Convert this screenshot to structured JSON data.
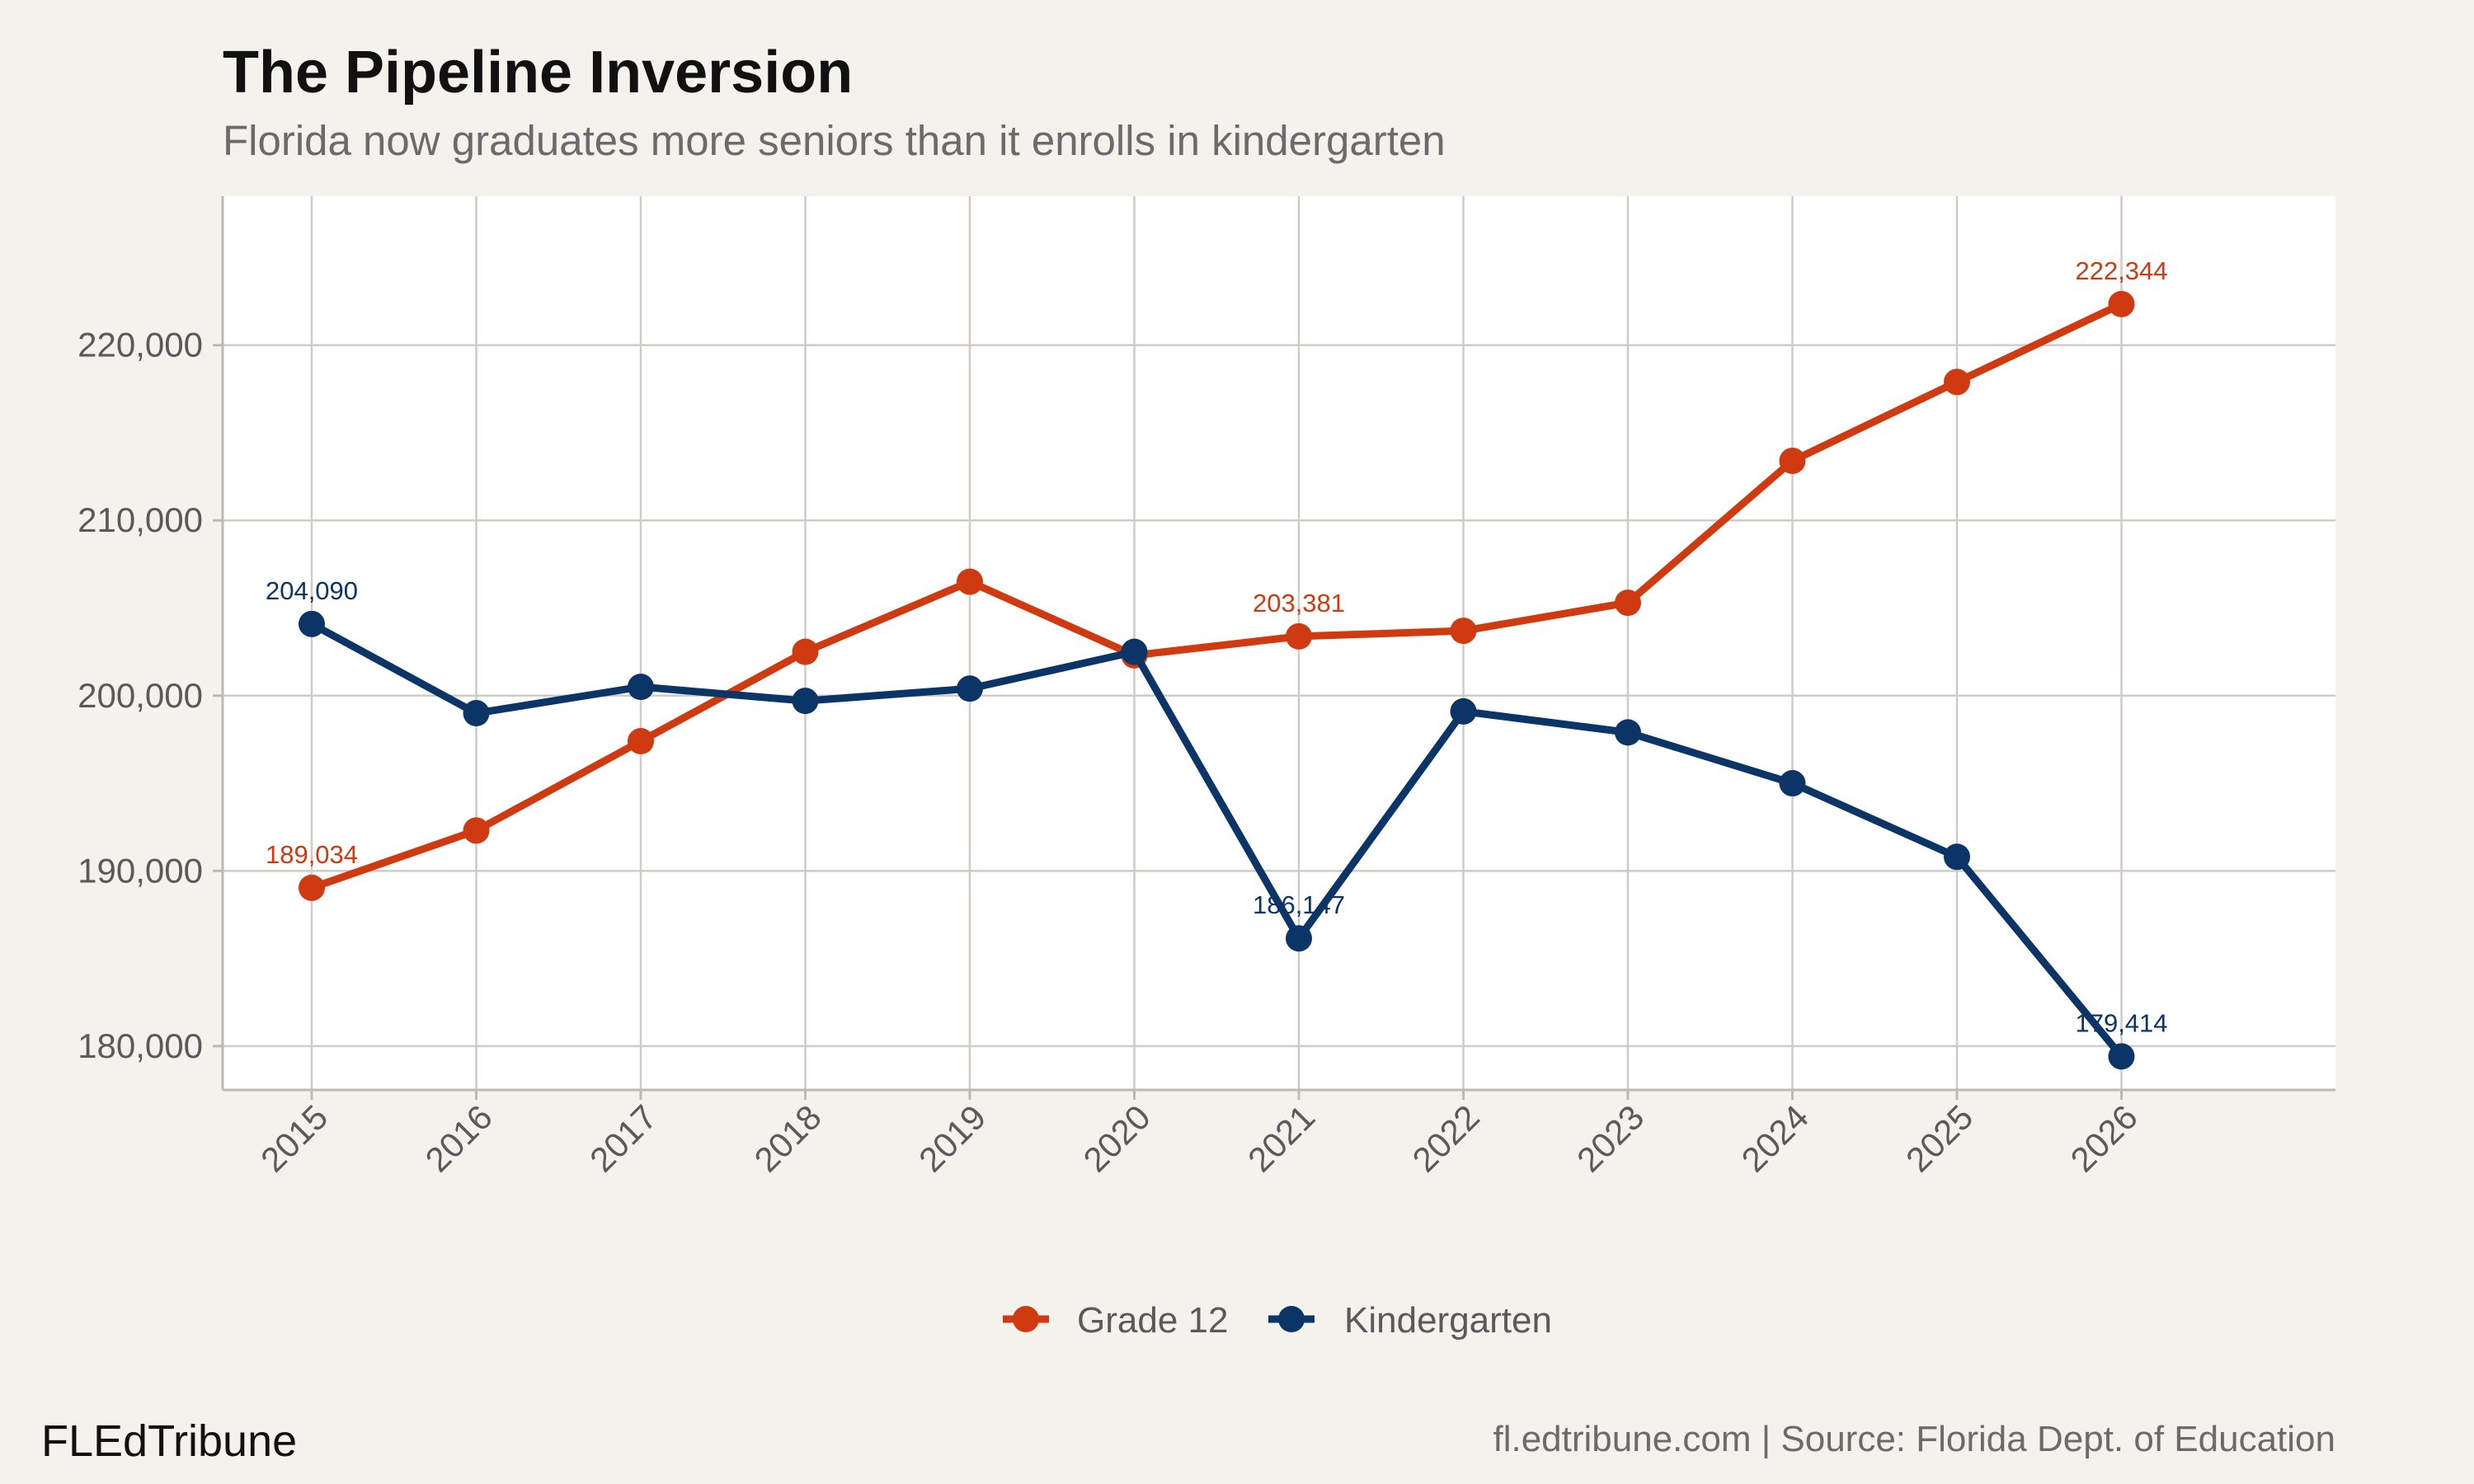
{
  "chart_data": {
    "type": "line",
    "title": "The Pipeline Inversion",
    "subtitle": "Florida now graduates more seniors than it enrolls in kindergarten",
    "xlabel": "",
    "ylabel": "",
    "x": [
      "2015",
      "2016",
      "2017",
      "2018",
      "2019",
      "2020",
      "2021",
      "2022",
      "2023",
      "2024",
      "2025",
      "2026"
    ],
    "ylim": [
      177500,
      228500
    ],
    "yticks": [
      180000,
      190000,
      200000,
      210000,
      220000
    ],
    "ytick_labels": [
      "180,000",
      "190,000",
      "200,000",
      "210,000",
      "220,000"
    ],
    "grid": true,
    "legend_position": "bottom",
    "series": [
      {
        "name": "Grade 12",
        "color": "#d03a10",
        "values": [
          189034,
          192300,
          197400,
          202500,
          206500,
          202300,
          203381,
          203700,
          205300,
          213400,
          217900,
          222344
        ],
        "labels": [
          {
            "index": 0,
            "text": "189,034"
          },
          {
            "index": 6,
            "text": "203,381"
          },
          {
            "index": 11,
            "text": "222,344"
          }
        ]
      },
      {
        "name": "Kindergarten",
        "color": "#0a3566",
        "values": [
          204090,
          199000,
          200500,
          199700,
          200400,
          202500,
          186147,
          199100,
          197900,
          195000,
          190800,
          179414
        ],
        "labels": [
          {
            "index": 0,
            "text": "204,090"
          },
          {
            "index": 6,
            "text": "186,147"
          },
          {
            "index": 11,
            "text": "179,414"
          }
        ]
      }
    ],
    "brand": "FLEdTribune",
    "caption": "fl.edtribune.com | Source: Florida Dept. of Education"
  }
}
